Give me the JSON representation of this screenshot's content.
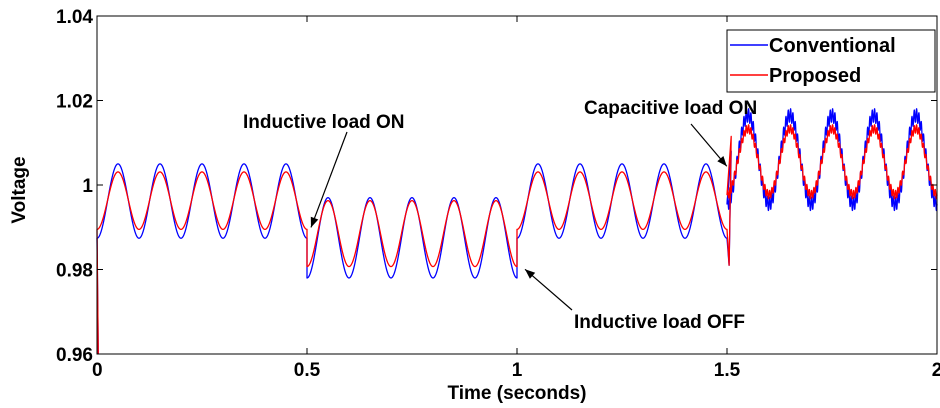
{
  "chart_data": {
    "type": "line",
    "xlabel": "Time (seconds)",
    "ylabel": "Voltage",
    "xlim": [
      0,
      2
    ],
    "ylim": [
      0.96,
      1.04
    ],
    "xticks": [
      0,
      0.5,
      1,
      1.5,
      2
    ],
    "xtick_labels": [
      "0",
      "0.5",
      "1",
      "1.5",
      "2"
    ],
    "yticks": [
      0.96,
      0.98,
      1,
      1.02,
      1.04
    ],
    "ytick_labels": [
      "0.96",
      "0.98",
      "1",
      "1.02",
      "1.04"
    ],
    "legend_position": "top-right",
    "series": [
      {
        "name": "Conventional",
        "color": "#0000ff",
        "segments": [
          {
            "t_start": 0.0,
            "t_end": 0.5,
            "mean": 0.9962,
            "amplitude": 0.0088
          },
          {
            "t_start": 0.5,
            "t_end": 1.0,
            "mean": 0.9875,
            "amplitude": 0.0095
          },
          {
            "t_start": 1.0,
            "t_end": 1.5,
            "mean": 0.9962,
            "amplitude": 0.0088
          },
          {
            "t_start": 1.5,
            "t_end": 2.0,
            "mean": 1.006,
            "amplitude": 0.0105
          }
        ]
      },
      {
        "name": "Proposed",
        "color": "#ff0000",
        "segments": [
          {
            "t_start": 0.0,
            "t_end": 0.5,
            "mean": 0.9963,
            "amplitude": 0.0068
          },
          {
            "t_start": 0.5,
            "t_end": 1.0,
            "mean": 0.9885,
            "amplitude": 0.0078
          },
          {
            "t_start": 1.0,
            "t_end": 1.5,
            "mean": 0.9963,
            "amplitude": 0.0068
          },
          {
            "t_start": 1.5,
            "t_end": 2.0,
            "mean": 1.0055,
            "amplitude": 0.0078
          }
        ]
      }
    ],
    "oscillation_period_s": 0.1,
    "annotations": [
      {
        "text": "Inductive load ON",
        "arrow_to": [
          0.5,
          0.989
        ]
      },
      {
        "text": "Inductive load OFF",
        "arrow_to": [
          1.0,
          0.981
        ]
      },
      {
        "text": "Capacitive load ON",
        "arrow_to": [
          1.49,
          1.0035
        ]
      }
    ]
  }
}
